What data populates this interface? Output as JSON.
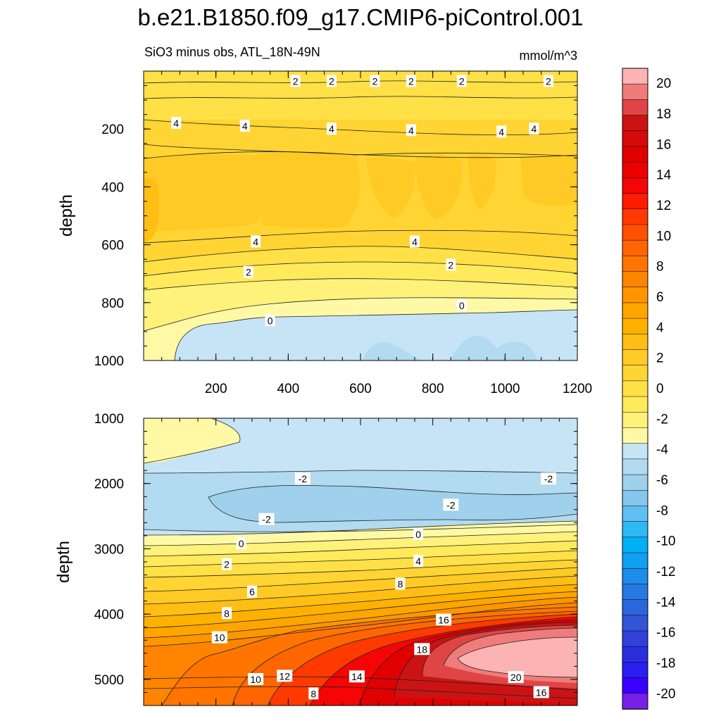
{
  "chart_data": [
    {
      "type": "heatmap",
      "panel": "upper",
      "figure_title": "b.e21.B1850.f09_g17.CMIP6-piControl.001",
      "title": "SiO3 minus obs, ATL_18N-49N",
      "units": "mmol/m^3",
      "xlabel": "",
      "ylabel": "depth",
      "xlim": [
        0,
        1200
      ],
      "ylim": [
        1000,
        0
      ],
      "x_ticks": [
        "200",
        "400",
        "600",
        "800",
        "1000",
        "1200"
      ],
      "y_ticks": [
        "200",
        "400",
        "600",
        "800",
        "1000"
      ],
      "contour_labels": [
        {
          "text": "2",
          "x": 420,
          "y": 35
        },
        {
          "text": "2",
          "x": 520,
          "y": 35
        },
        {
          "text": "2",
          "x": 640,
          "y": 35
        },
        {
          "text": "2",
          "x": 740,
          "y": 35
        },
        {
          "text": "2",
          "x": 880,
          "y": 35
        },
        {
          "text": "2",
          "x": 1120,
          "y": 35
        },
        {
          "text": "4",
          "x": 90,
          "y": 180
        },
        {
          "text": "4",
          "x": 280,
          "y": 190
        },
        {
          "text": "4",
          "x": 520,
          "y": 200
        },
        {
          "text": "4",
          "x": 740,
          "y": 205
        },
        {
          "text": "4",
          "x": 990,
          "y": 210
        },
        {
          "text": "4",
          "x": 1080,
          "y": 200
        },
        {
          "text": "4",
          "x": 310,
          "y": 590
        },
        {
          "text": "4",
          "x": 750,
          "y": 590
        },
        {
          "text": "2",
          "x": 290,
          "y": 695
        },
        {
          "text": "2",
          "x": 850,
          "y": 670
        },
        {
          "text": "0",
          "x": 350,
          "y": 862
        },
        {
          "text": "0",
          "x": 880,
          "y": 810
        }
      ]
    },
    {
      "type": "heatmap",
      "panel": "lower",
      "title": "",
      "xlabel": "",
      "ylabel": "depth",
      "xlim": [
        0,
        1200
      ],
      "ylim": [
        5400,
        1000
      ],
      "y_ticks": [
        "1000",
        "2000",
        "3000",
        "4000",
        "5000"
      ],
      "contour_labels": [
        {
          "text": "-2",
          "x": 440,
          "y": 1930
        },
        {
          "text": "-2",
          "x": 1120,
          "y": 1930
        },
        {
          "text": "-2",
          "x": 850,
          "y": 2330
        },
        {
          "text": "-2",
          "x": 340,
          "y": 2550
        },
        {
          "text": "0",
          "x": 270,
          "y": 2920
        },
        {
          "text": "0",
          "x": 760,
          "y": 2780
        },
        {
          "text": "2",
          "x": 230,
          "y": 3240
        },
        {
          "text": "4",
          "x": 760,
          "y": 3190
        },
        {
          "text": "8",
          "x": 710,
          "y": 3540
        },
        {
          "text": "6",
          "x": 300,
          "y": 3660
        },
        {
          "text": "8",
          "x": 230,
          "y": 3990
        },
        {
          "text": "10",
          "x": 210,
          "y": 4360
        },
        {
          "text": "16",
          "x": 830,
          "y": 4090
        },
        {
          "text": "18",
          "x": 770,
          "y": 4540
        },
        {
          "text": "20",
          "x": 1030,
          "y": 4970
        },
        {
          "text": "10",
          "x": 310,
          "y": 5000
        },
        {
          "text": "12",
          "x": 390,
          "y": 4950
        },
        {
          "text": "14",
          "x": 590,
          "y": 4960
        },
        {
          "text": "8",
          "x": 470,
          "y": 5220
        },
        {
          "text": "16",
          "x": 1100,
          "y": 5200
        }
      ]
    }
  ],
  "colorbar": {
    "ticks": [
      "20",
      "18",
      "16",
      "14",
      "12",
      "10",
      "8",
      "6",
      "4",
      "2",
      "0",
      "-2",
      "-4",
      "-6",
      "-8",
      "-10",
      "-12",
      "-14",
      "-16",
      "-18",
      "-20"
    ],
    "colors": [
      "#fcb3b3",
      "#ef7b7b",
      "#df4545",
      "#cc1313",
      "#d60a0a",
      "#e00000",
      "#ec0000",
      "#f50505",
      "#ff1c00",
      "#ff3a00",
      "#ff5200",
      "#ff6500",
      "#ff7500",
      "#ff8500",
      "#ff9600",
      "#ffa500",
      "#ffb100",
      "#ffbe13",
      "#ffca25",
      "#ffd433",
      "#ffe046",
      "#ffea5c",
      "#fff27a",
      "#fff9a6",
      "#c6e4f5",
      "#b2daf0",
      "#9fd0ec",
      "#85c7ed",
      "#5ebff0",
      "#2fb8f3",
      "#00b0f5",
      "#0fa0ef",
      "#1c8de8",
      "#2679e2",
      "#2c66dc",
      "#3254d6",
      "#3040da",
      "#2b2edf",
      "#2a1ef0",
      "#3a00ff",
      "#7a20e6"
    ]
  }
}
